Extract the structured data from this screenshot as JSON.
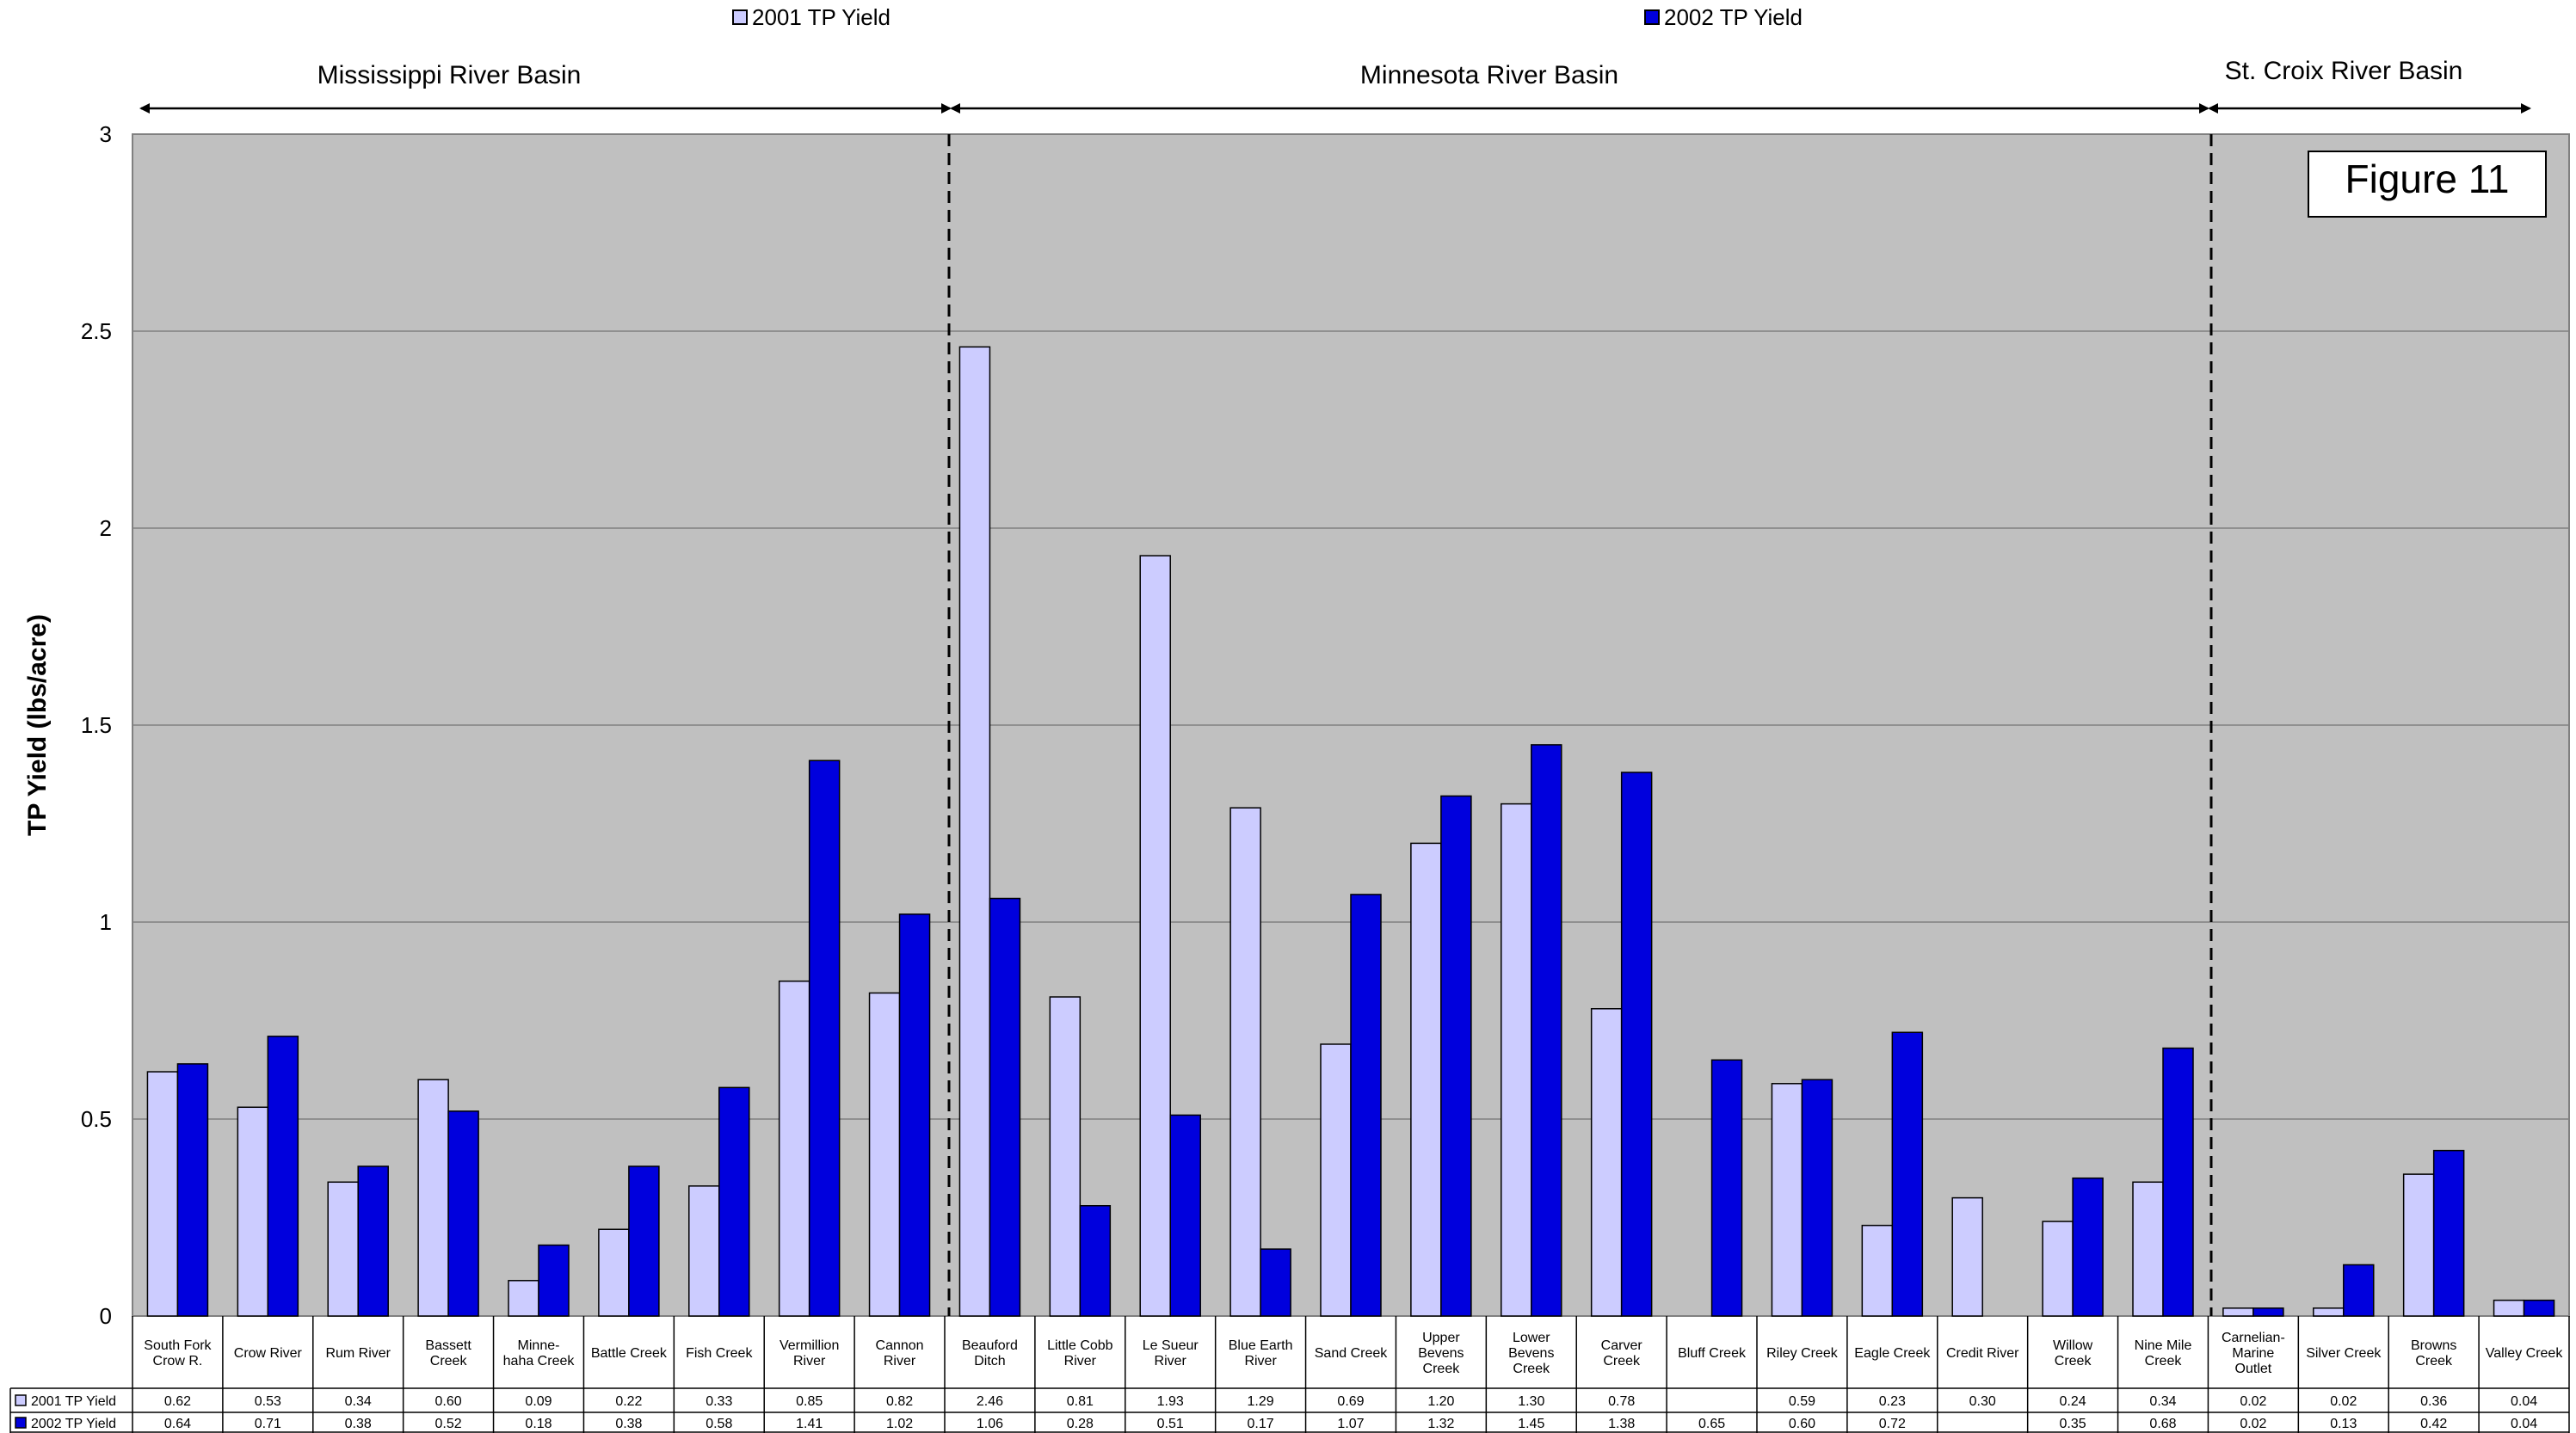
{
  "legend": {
    "series1_label": "2001 TP Yield",
    "series2_label": "2002 TP Yield"
  },
  "basins": [
    {
      "label": "Mississippi River Basin"
    },
    {
      "label": "Minnesota River Basin"
    },
    {
      "label": "St. Croix River Basin"
    }
  ],
  "figure_label": "Figure 11",
  "colors": {
    "plot_bg": "#c0c0c0",
    "series_2001": "#ccccff",
    "series_2002": "#0000dd",
    "gridline": "#808080"
  },
  "chart_data": {
    "type": "bar",
    "title": "",
    "ylabel": "TP Yield (lbs/acre)",
    "xlabel": "",
    "ylim": [
      0,
      3
    ],
    "yticks": [
      "0",
      "0.5",
      "1",
      "1.5",
      "2",
      "2.5",
      "3"
    ],
    "grid": true,
    "legend_position": "top",
    "categories": [
      [
        "South Fork",
        "Crow R."
      ],
      [
        "Crow River"
      ],
      [
        "Rum River"
      ],
      [
        "Bassett",
        "Creek"
      ],
      [
        "Minne-",
        "haha Creek"
      ],
      [
        "Battle Creek"
      ],
      [
        "Fish Creek"
      ],
      [
        "Vermillion",
        "River"
      ],
      [
        "Cannon",
        "River"
      ],
      [
        "Beauford",
        "Ditch"
      ],
      [
        "Little Cobb",
        "River"
      ],
      [
        "Le Sueur",
        "River"
      ],
      [
        "Blue Earth",
        "River"
      ],
      [
        "Sand Creek"
      ],
      [
        "Upper",
        "Bevens",
        "Creek"
      ],
      [
        "Lower",
        "Bevens",
        "Creek"
      ],
      [
        "Carver",
        "Creek"
      ],
      [
        "Bluff Creek"
      ],
      [
        "Riley Creek"
      ],
      [
        "Eagle Creek"
      ],
      [
        "Credit River"
      ],
      [
        "Willow",
        "Creek"
      ],
      [
        "Nine Mile",
        "Creek"
      ],
      [
        "Carnelian-",
        "Marine",
        "Outlet"
      ],
      [
        "Silver Creek"
      ],
      [
        "Browns",
        "Creek"
      ],
      [
        "Valley Creek"
      ]
    ],
    "series": [
      {
        "name": "2001 TP Yield",
        "values": [
          0.62,
          0.53,
          0.34,
          0.6,
          0.09,
          0.22,
          0.33,
          0.85,
          0.82,
          2.46,
          0.81,
          1.93,
          1.29,
          0.69,
          1.2,
          1.3,
          0.78,
          null,
          0.59,
          0.23,
          0.3,
          0.24,
          0.34,
          0.02,
          0.02,
          0.36,
          0.04
        ],
        "labels": [
          "0.62",
          "0.53",
          "0.34",
          "0.60",
          "0.09",
          "0.22",
          "0.33",
          "0.85",
          "0.82",
          "2.46",
          "0.81",
          "1.93",
          "1.29",
          "0.69",
          "1.20",
          "1.30",
          "0.78",
          "",
          "0.59",
          "0.23",
          "0.30",
          "0.24",
          "0.34",
          "0.02",
          "0.02",
          "0.36",
          "0.04"
        ]
      },
      {
        "name": "2002 TP Yield",
        "values": [
          0.64,
          0.71,
          0.38,
          0.52,
          0.18,
          0.38,
          0.58,
          1.41,
          1.02,
          1.06,
          0.28,
          0.51,
          0.17,
          1.07,
          1.32,
          1.45,
          1.38,
          0.65,
          0.6,
          0.72,
          null,
          0.35,
          0.68,
          0.02,
          0.13,
          0.42,
          0.04
        ],
        "labels": [
          "0.64",
          "0.71",
          "0.38",
          "0.52",
          "0.18",
          "0.38",
          "0.58",
          "1.41",
          "1.02",
          "1.06",
          "0.28",
          "0.51",
          "0.17",
          "1.07",
          "1.32",
          "1.45",
          "1.38",
          "0.65",
          "0.60",
          "0.72",
          "",
          "0.35",
          "0.68",
          "0.02",
          "0.13",
          "0.42",
          "0.04"
        ]
      }
    ]
  }
}
